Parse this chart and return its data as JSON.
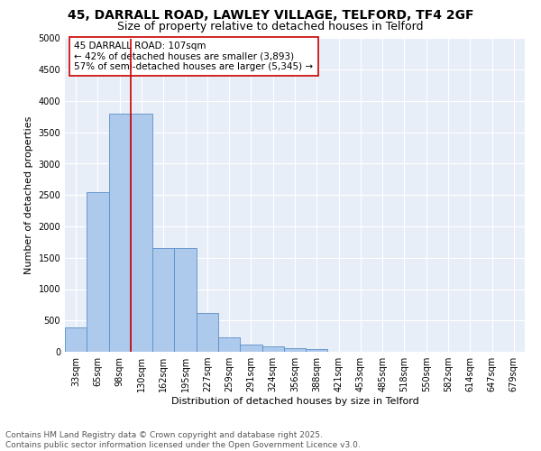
{
  "title_line1": "45, DARRALL ROAD, LAWLEY VILLAGE, TELFORD, TF4 2GF",
  "title_line2": "Size of property relative to detached houses in Telford",
  "xlabel": "Distribution of detached houses by size in Telford",
  "ylabel": "Number of detached properties",
  "categories": [
    "33sqm",
    "65sqm",
    "98sqm",
    "130sqm",
    "162sqm",
    "195sqm",
    "227sqm",
    "259sqm",
    "291sqm",
    "324sqm",
    "356sqm",
    "388sqm",
    "421sqm",
    "453sqm",
    "485sqm",
    "518sqm",
    "550sqm",
    "582sqm",
    "614sqm",
    "647sqm",
    "679sqm"
  ],
  "values": [
    390,
    2550,
    3800,
    3800,
    1650,
    1650,
    620,
    230,
    110,
    90,
    55,
    40,
    5,
    0,
    0,
    0,
    0,
    0,
    0,
    0,
    0
  ],
  "bar_color": "#adc9eb",
  "bar_edge_color": "#5b8fc7",
  "vline_x": 2.5,
  "vline_color": "#cc0000",
  "annotation_text": "45 DARRALL ROAD: 107sqm\n← 42% of detached houses are smaller (3,893)\n57% of semi-detached houses are larger (5,345) →",
  "annotation_box_color": "#ffffff",
  "annotation_box_edge": "#cc0000",
  "ylim": [
    0,
    5000
  ],
  "yticks": [
    0,
    500,
    1000,
    1500,
    2000,
    2500,
    3000,
    3500,
    4000,
    4500,
    5000
  ],
  "background_color": "#e8eef8",
  "grid_color": "#ffffff",
  "footer_text": "Contains HM Land Registry data © Crown copyright and database right 2025.\nContains public sector information licensed under the Open Government Licence v3.0.",
  "title_fontsize": 10,
  "subtitle_fontsize": 9,
  "axis_label_fontsize": 8,
  "tick_fontsize": 7,
  "annotation_fontsize": 7.5,
  "footer_fontsize": 6.5
}
